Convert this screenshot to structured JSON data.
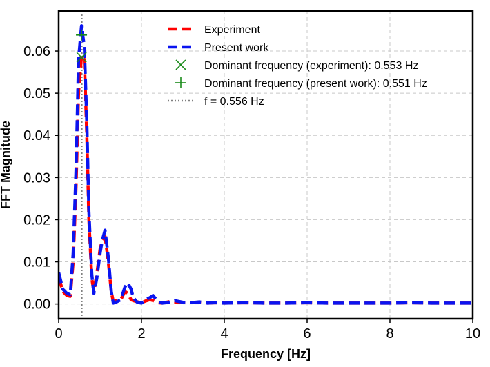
{
  "chart_data": {
    "type": "line",
    "title": "",
    "xlabel": "Frequency [Hz]",
    "ylabel": "FFT Magnitude",
    "xlim": [
      0,
      10
    ],
    "ylim": [
      -0.0035,
      0.0695
    ],
    "xticks": [
      0,
      2,
      4,
      6,
      8,
      10
    ],
    "xtick_labels": [
      "0",
      "2",
      "4",
      "6",
      "8",
      "10"
    ],
    "yticks": [
      0.0,
      0.01,
      0.02,
      0.03,
      0.04,
      0.05,
      0.06
    ],
    "ytick_labels": [
      "0.00",
      "0.01",
      "0.02",
      "0.03",
      "0.04",
      "0.05",
      "0.06"
    ],
    "grid": true,
    "legend_position": "top-center",
    "series": [
      {
        "name": "Experiment",
        "color": "#ff0000",
        "style": "dashed",
        "x": [
          0,
          0.1,
          0.2,
          0.28,
          0.35,
          0.42,
          0.48,
          0.553,
          0.62,
          0.68,
          0.73,
          0.8,
          0.85,
          0.92,
          1.0,
          1.05,
          1.12,
          1.2,
          1.27,
          1.32,
          1.4,
          1.5,
          1.6,
          1.67,
          1.75,
          1.8,
          1.9,
          2.0,
          2.1,
          2.2,
          2.28,
          2.4,
          2.5,
          2.6,
          2.7,
          2.8,
          2.9,
          3.0,
          3.2,
          3.4,
          3.6,
          3.8,
          4.0,
          4.5,
          5.0,
          5.5,
          6.0,
          6.5,
          7.0,
          7.5,
          8.0,
          8.5,
          9.0,
          9.5,
          10.0
        ],
        "y": [
          0.0065,
          0.003,
          0.002,
          0.0018,
          0.01,
          0.028,
          0.05,
          0.059,
          0.058,
          0.04,
          0.02,
          0.006,
          0.003,
          0.007,
          0.013,
          0.015,
          0.016,
          0.01,
          0.003,
          0.0005,
          0.0008,
          0.001,
          0.003,
          0.0025,
          0.001,
          0.0008,
          0.0005,
          0.0003,
          0.0007,
          0.001,
          0.0008,
          0.0003,
          0.0002,
          0.0004,
          0.0006,
          0.0005,
          0.0003,
          0.0004,
          0.0003,
          0.0004,
          0.0002,
          0.0003,
          0.0002,
          0.0003,
          0.0002,
          0.0002,
          0.0003,
          0.0002,
          0.0002,
          0.0002,
          0.0002,
          0.0003,
          0.0002,
          0.0002,
          0.0002
        ]
      },
      {
        "name": "Present work",
        "color": "#0a14f0",
        "style": "dashed",
        "x": [
          0,
          0.1,
          0.2,
          0.28,
          0.35,
          0.42,
          0.48,
          0.551,
          0.62,
          0.68,
          0.73,
          0.8,
          0.85,
          0.92,
          1.0,
          1.05,
          1.12,
          1.2,
          1.27,
          1.32,
          1.4,
          1.5,
          1.6,
          1.67,
          1.75,
          1.8,
          1.9,
          2.0,
          2.1,
          2.2,
          2.28,
          2.4,
          2.5,
          2.6,
          2.7,
          2.8,
          2.9,
          3.0,
          3.2,
          3.4,
          3.6,
          3.8,
          4.0,
          4.5,
          5.0,
          5.5,
          6.0,
          6.5,
          7.0,
          7.5,
          8.0,
          8.5,
          9.0,
          9.5,
          10.0
        ],
        "y": [
          0.0075,
          0.0035,
          0.0025,
          0.0022,
          0.012,
          0.032,
          0.058,
          0.066,
          0.061,
          0.043,
          0.022,
          0.007,
          0.0025,
          0.006,
          0.012,
          0.015,
          0.0175,
          0.011,
          0.003,
          0.0002,
          0.0005,
          0.001,
          0.004,
          0.005,
          0.0035,
          0.0015,
          0.0004,
          0.0002,
          0.001,
          0.0015,
          0.002,
          0.0005,
          0.0002,
          0.0003,
          0.0005,
          0.0008,
          0.0006,
          0.0004,
          0.0003,
          0.0005,
          0.0002,
          0.0003,
          0.0002,
          0.0003,
          0.0002,
          0.0002,
          0.0003,
          0.0002,
          0.0002,
          0.0002,
          0.0002,
          0.0003,
          0.0002,
          0.0002,
          0.0002
        ]
      }
    ],
    "markers": [
      {
        "name": "Dominant frequency (experiment): 0.553 Hz",
        "shape": "x",
        "color": "#1a8a1a",
        "x": 0.553,
        "y": 0.0585
      },
      {
        "name": "Dominant frequency (present work): 0.551 Hz",
        "shape": "plus",
        "color": "#1a8a1a",
        "x": 0.551,
        "y": 0.0638
      }
    ],
    "vlines": [
      {
        "name": "f = 0.556 Hz",
        "x": 0.556,
        "color": "#808080",
        "style": "dotted"
      }
    ]
  }
}
